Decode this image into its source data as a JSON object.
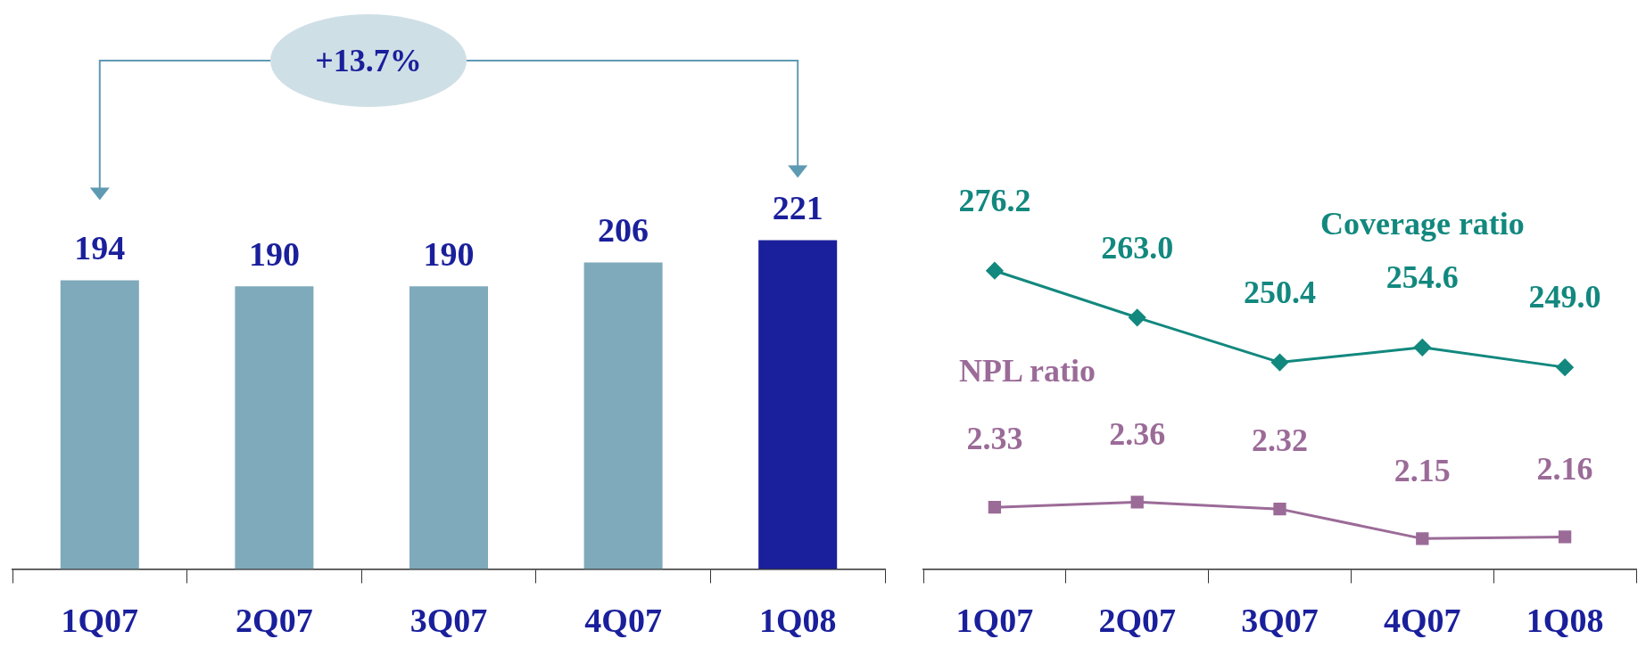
{
  "chart_data": [
    {
      "type": "bar",
      "categories": [
        "1Q07",
        "2Q07",
        "3Q07",
        "4Q07",
        "1Q08"
      ],
      "values": [
        194,
        190,
        190,
        206,
        221
      ],
      "colors": [
        "#7faabb",
        "#7faabb",
        "#7faabb",
        "#7faabb",
        "#1a1f9b"
      ],
      "data_labels": true,
      "annotations": [
        "+13.7%"
      ]
    },
    {
      "type": "line",
      "categories": [
        null,
        null,
        null,
        null,
        null
      ],
      "tick_labels": false,
      "series": [
        {
          "name": "Coverage ratio",
          "color": "#12887e",
          "marker": "diamond",
          "values": [
            276.2,
            263.0,
            250.4,
            254.6,
            249.0
          ],
          "value_labels": [
            "276.2",
            "263.0",
            "250.4",
            "254.6",
            "249.0"
          ]
        }
      ]
    },
    {
      "type": "line",
      "categories": [
        "1Q07",
        "2Q07",
        "3Q07",
        "4Q07",
        "1Q08"
      ],
      "series": [
        {
          "name": "NPL ratio",
          "color": "#9b6b98",
          "marker": "square",
          "values": [
            2.33,
            2.36,
            2.32,
            2.15,
            2.16
          ],
          "value_labels": [
            "2.33",
            "2.36",
            "2.32",
            "2.15",
            "2.16"
          ]
        }
      ]
    }
  ]
}
